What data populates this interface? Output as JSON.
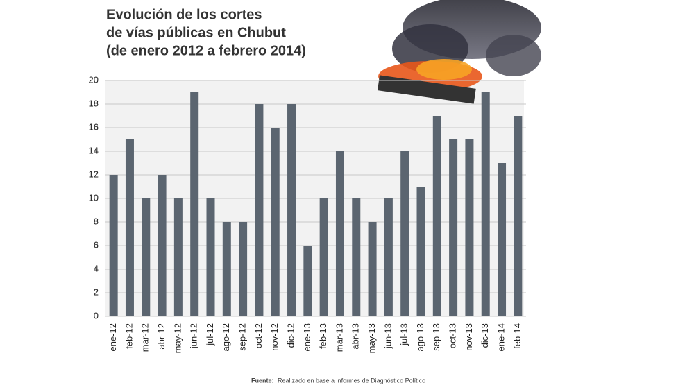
{
  "chart_data": {
    "type": "bar",
    "title": [
      "Evolución de los cortes",
      "de vías públicas en Chubut",
      "(de enero 2012 a febrero 2014)"
    ],
    "source_label": "Fuente:",
    "source": "Realizado en base a informes de Diagnóstico Político",
    "categories": [
      "ene-12",
      "feb-12",
      "mar-12",
      "abr-12",
      "may-12",
      "jun-12",
      "jul-12",
      "ago-12",
      "sep-12",
      "oct-12",
      "nov-12",
      "dic-12",
      "ene-13",
      "feb-13",
      "mar-13",
      "abr-13",
      "may-13",
      "jun-13",
      "jul-13",
      "ago-13",
      "sep-13",
      "oct-13",
      "nov-13",
      "dic-13",
      "ene-14",
      "feb-14"
    ],
    "values": [
      12,
      15,
      10,
      12,
      10,
      19,
      10,
      8,
      8,
      18,
      16,
      18,
      6,
      10,
      14,
      10,
      8,
      10,
      14,
      11,
      17,
      15,
      15,
      19,
      13,
      17
    ],
    "color": "#5b6570",
    "ylim": [
      0,
      20
    ],
    "yticks": [
      0,
      2,
      4,
      6,
      8,
      10,
      12,
      14,
      16,
      18,
      20
    ],
    "grid": true
  }
}
